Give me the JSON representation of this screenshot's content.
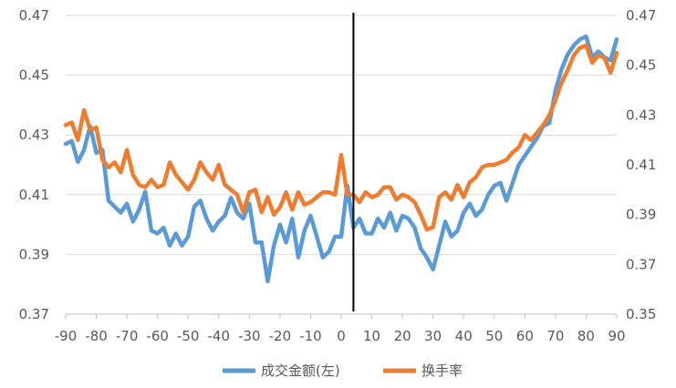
{
  "chart_data": {
    "type": "line",
    "title": "",
    "xlabel": "",
    "ylabel": "",
    "x_ticks": [
      "-90",
      "-80",
      "-70",
      "-60",
      "-50",
      "-40",
      "-30",
      "-20",
      "-10",
      "0",
      "10",
      "20",
      "30",
      "40",
      "50",
      "60",
      "70",
      "80",
      "90"
    ],
    "y_left_ticks": [
      "0.37",
      "0.39",
      "0.41",
      "0.43",
      "0.45",
      "0.47"
    ],
    "y_right_ticks": [
      "0.35",
      "0.37",
      "0.39",
      "0.41",
      "0.43",
      "0.45",
      "0.47"
    ],
    "xlim": [
      -90,
      90
    ],
    "y_left_lim": [
      0.37,
      0.47
    ],
    "y_right_lim": [
      0.35,
      0.47
    ],
    "vline_x": 4,
    "grid": "horizontal",
    "legend_position": "bottom",
    "colors": {
      "series1": "#5b9bd5",
      "series2": "#ed7d31",
      "vline": "#000000",
      "grid": "#d9d9d9",
      "axis": "#bfbfbf"
    },
    "series": [
      {
        "name": "成交金额(左)",
        "axis": "left",
        "x": [
          -90,
          -88,
          -86,
          -84,
          -82,
          -80,
          -78,
          -76,
          -74,
          -72,
          -70,
          -68,
          -66,
          -64,
          -62,
          -60,
          -58,
          -56,
          -54,
          -52,
          -50,
          -48,
          -46,
          -44,
          -42,
          -40,
          -38,
          -36,
          -34,
          -32,
          -30,
          -28,
          -26,
          -24,
          -22,
          -20,
          -18,
          -16,
          -14,
          -12,
          -10,
          -8,
          -6,
          -4,
          -2,
          0,
          2,
          4,
          6,
          8,
          10,
          12,
          14,
          16,
          18,
          20,
          22,
          24,
          26,
          28,
          30,
          32,
          34,
          36,
          38,
          40,
          42,
          44,
          46,
          48,
          50,
          52,
          54,
          56,
          58,
          60,
          62,
          64,
          66,
          68,
          70,
          72,
          74,
          76,
          78,
          80,
          82,
          84,
          86,
          88,
          90
        ],
        "y": [
          0.427,
          0.428,
          0.421,
          0.425,
          0.433,
          0.424,
          0.425,
          0.408,
          0.406,
          0.404,
          0.407,
          0.401,
          0.405,
          0.411,
          0.398,
          0.397,
          0.399,
          0.393,
          0.397,
          0.393,
          0.396,
          0.406,
          0.408,
          0.402,
          0.398,
          0.401,
          0.403,
          0.409,
          0.404,
          0.402,
          0.407,
          0.394,
          0.394,
          0.381,
          0.393,
          0.4,
          0.394,
          0.402,
          0.389,
          0.398,
          0.403,
          0.396,
          0.389,
          0.391,
          0.396,
          0.396,
          0.413,
          0.399,
          0.402,
          0.397,
          0.397,
          0.402,
          0.399,
          0.404,
          0.398,
          0.403,
          0.402,
          0.399,
          0.392,
          0.389,
          0.385,
          0.393,
          0.401,
          0.396,
          0.398,
          0.404,
          0.407,
          0.403,
          0.405,
          0.41,
          0.413,
          0.414,
          0.408,
          0.414,
          0.42,
          0.423,
          0.426,
          0.429,
          0.433,
          0.434,
          0.445,
          0.452,
          0.457,
          0.46,
          0.462,
          0.463,
          0.456,
          0.458,
          0.456,
          0.455,
          0.462
        ]
      },
      {
        "name": "换手率",
        "axis": "right",
        "x": [
          -90,
          -88,
          -86,
          -84,
          -82,
          -80,
          -78,
          -76,
          -74,
          -72,
          -70,
          -68,
          -66,
          -64,
          -62,
          -60,
          -58,
          -56,
          -54,
          -52,
          -50,
          -48,
          -46,
          -44,
          -42,
          -40,
          -38,
          -36,
          -34,
          -32,
          -30,
          -28,
          -26,
          -24,
          -22,
          -20,
          -18,
          -16,
          -14,
          -12,
          -10,
          -8,
          -6,
          -4,
          -2,
          0,
          2,
          4,
          6,
          8,
          10,
          12,
          14,
          16,
          18,
          20,
          22,
          24,
          26,
          28,
          30,
          32,
          34,
          36,
          38,
          40,
          42,
          44,
          46,
          48,
          50,
          52,
          54,
          56,
          58,
          60,
          62,
          64,
          66,
          68,
          70,
          72,
          74,
          76,
          78,
          80,
          82,
          84,
          86,
          88,
          90
        ],
        "y": [
          0.426,
          0.427,
          0.42,
          0.432,
          0.424,
          0.425,
          0.412,
          0.409,
          0.411,
          0.407,
          0.416,
          0.406,
          0.402,
          0.401,
          0.404,
          0.401,
          0.402,
          0.411,
          0.406,
          0.403,
          0.4,
          0.404,
          0.411,
          0.407,
          0.404,
          0.41,
          0.402,
          0.4,
          0.398,
          0.391,
          0.399,
          0.4,
          0.391,
          0.397,
          0.39,
          0.393,
          0.399,
          0.392,
          0.399,
          0.394,
          0.395,
          0.397,
          0.399,
          0.399,
          0.398,
          0.414,
          0.398,
          0.398,
          0.395,
          0.399,
          0.397,
          0.398,
          0.401,
          0.401,
          0.396,
          0.398,
          0.397,
          0.395,
          0.39,
          0.384,
          0.385,
          0.397,
          0.399,
          0.396,
          0.402,
          0.397,
          0.403,
          0.405,
          0.409,
          0.41,
          0.41,
          0.411,
          0.412,
          0.415,
          0.417,
          0.422,
          0.42,
          0.423,
          0.426,
          0.43,
          0.436,
          0.443,
          0.448,
          0.454,
          0.457,
          0.458,
          0.451,
          0.454,
          0.453,
          0.447,
          0.455
        ]
      }
    ]
  }
}
